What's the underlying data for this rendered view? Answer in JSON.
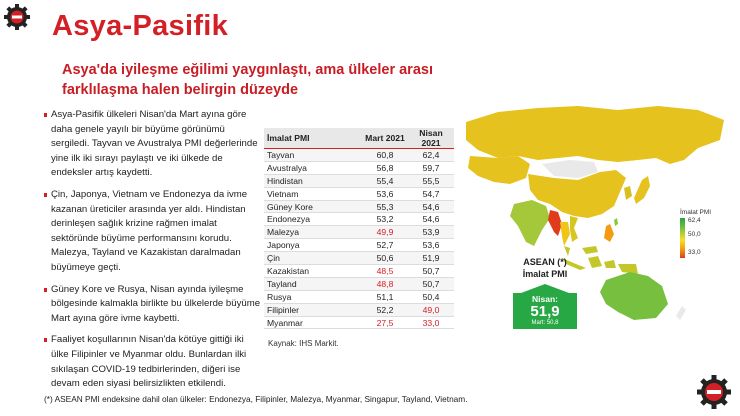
{
  "title": "Asya-Pasifik",
  "subtitle": "Asya'da iyileşme eğilimi yaygınlaştı, ama ülkeler arası farklılaşma halen belirgin düzeyde",
  "bullets": [
    "Asya-Pasifik ülkeleri Nisan'da Mart ayına göre daha genele yayılı bir büyüme görünümü sergiledi. Tayvan ve Avustralya PMI değerlerinde yine ilk iki sırayı paylaştı ve iki ülkede de endeksler artış kaydetti.",
    "Çin, Japonya, Vietnam ve Endonezya da ivme kazanan üreticiler arasında yer aldı. Hindistan derinleşen sağlık krizine rağmen imalat sektöründe büyüme performansını korudu. Malezya, Tayland ve Kazakistan daralmadan büyümeye geçti.",
    "Güney Kore ve Rusya, Nisan ayında iyileşme bölgesinde kalmakla birlikte bu ülkelerde büyüme Mart ayına göre ivme kaybetti.",
    "Faaliyet koşullarının Nisan'da kötüye gittiği iki ülke Filipinler ve Myanmar oldu. Bunlardan ilki sıkılaşan COVID-19 tedbirlerinden, diğeri ise devam eden siyasi belirsizlikten etkilendi."
  ],
  "table": {
    "headers": [
      "İmalat PMI",
      "Mart 2021",
      "Nisan 2021"
    ],
    "rows": [
      {
        "country": "Tayvan",
        "mar": "60,8",
        "apr": "62,4"
      },
      {
        "country": "Avustralya",
        "mar": "56,8",
        "apr": "59,7"
      },
      {
        "country": "Hindistan",
        "mar": "55,4",
        "apr": "55,5"
      },
      {
        "country": "Vietnam",
        "mar": "53,6",
        "apr": "54,7"
      },
      {
        "country": "Güney Kore",
        "mar": "55,3",
        "apr": "54,6"
      },
      {
        "country": "Endonezya",
        "mar": "53,2",
        "apr": "54,6"
      },
      {
        "country": "Malezya",
        "mar": "49,9",
        "apr": "53,9"
      },
      {
        "country": "Japonya",
        "mar": "52,7",
        "apr": "53,6"
      },
      {
        "country": "Çin",
        "mar": "50,6",
        "apr": "51,9"
      },
      {
        "country": "Kazakistan",
        "mar": "48,5",
        "apr": "50,7"
      },
      {
        "country": "Tayland",
        "mar": "48,8",
        "apr": "50,7"
      },
      {
        "country": "Rusya",
        "mar": "51,1",
        "apr": "50,4"
      },
      {
        "country": "Filipinler",
        "mar": "52,2",
        "apr": "49,0"
      },
      {
        "country": "Myanmar",
        "mar": "27,5",
        "apr": "33,0"
      }
    ],
    "source": "Kaynak: IHS Markit."
  },
  "legend": {
    "title": "İmalat PMI",
    "max": "62,4",
    "mid": "50,0",
    "min": "33,0"
  },
  "asean": {
    "title_line1": "ASEAN (*)",
    "title_line2": "İmalat PMI",
    "label": "Nisan:",
    "value": "51,9",
    "prev": "Mart: 50,8"
  },
  "footnote": "(*) ASEAN PMI endeksine dahil olan ülkeler: Endonezya, Filipinler, Malezya, Myanmar, Singapur, Tayland, Vietnam.",
  "colors": {
    "accent": "#d31f26",
    "green": "#28a745",
    "map_yellow": "#e6c21f",
    "map_orange": "#f4b220"
  }
}
